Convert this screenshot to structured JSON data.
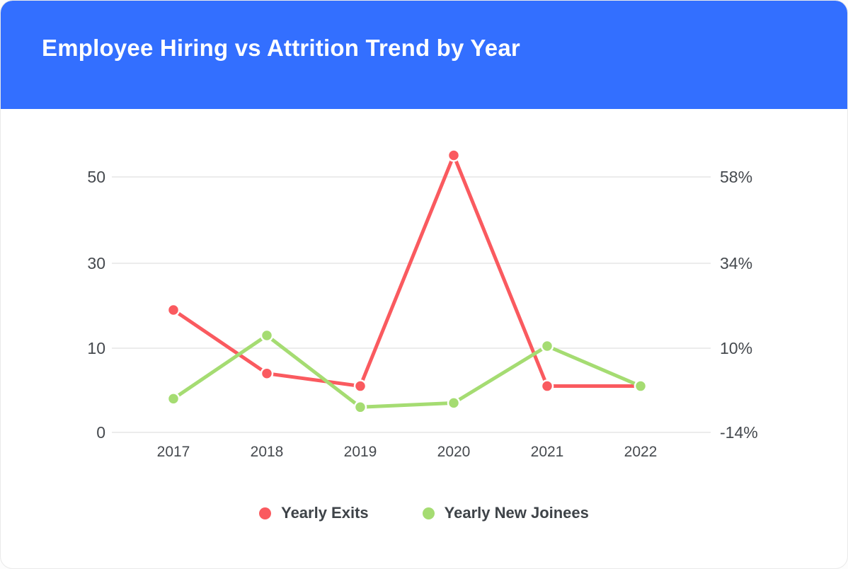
{
  "header": {
    "title": "Employee Hiring vs Attrition Trend by Year"
  },
  "colors": {
    "header_background": "#336FFF",
    "title_text": "#FFFFFF",
    "axis_label": "#45494E",
    "gridline": "#ECECEC",
    "legend_text": "#3E4348",
    "exits_red": "#FA5A5F",
    "joinees_green": "#A5DC72"
  },
  "chart_data": {
    "type": "line",
    "title": "Employee Hiring vs Attrition Trend by Year",
    "x": [
      "2017",
      "2018",
      "2019",
      "2020",
      "2021",
      "2022"
    ],
    "series": [
      {
        "name": "Yearly Exits",
        "color": "#FA5A5F",
        "values": [
          19,
          7,
          5.5,
          55,
          5.5,
          5.5
        ]
      },
      {
        "name": "Yearly New Joinees",
        "color": "#A5DC72",
        "values": [
          4,
          13,
          3,
          3.5,
          10.5,
          5.5
        ]
      }
    ],
    "left_axis": {
      "ticks": [
        0,
        10,
        30,
        50
      ]
    },
    "right_axis": {
      "ticks": [
        "-14%",
        "10%",
        "34%",
        "58%"
      ]
    },
    "grid": true,
    "legend_position": "bottom",
    "marker": "circle"
  },
  "legend": {
    "items": [
      {
        "label": "Yearly Exits",
        "color": "#FA5A5F"
      },
      {
        "label": "Yearly New Joinees",
        "color": "#A5DC72"
      }
    ]
  }
}
